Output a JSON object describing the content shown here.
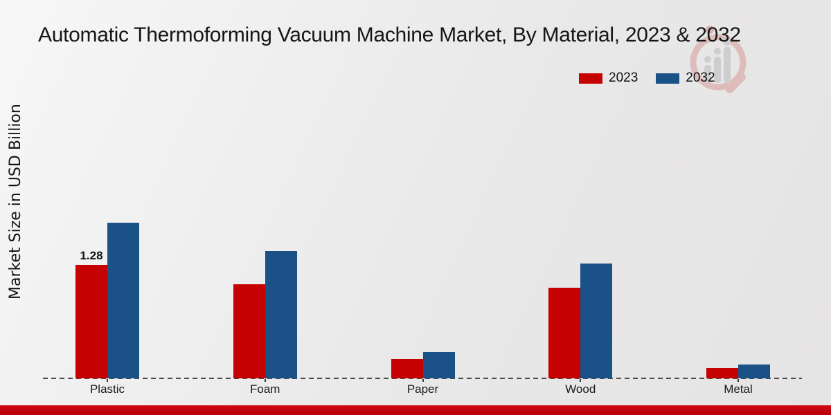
{
  "title": "Automatic Thermoforming Vacuum Machine Market, By Material, 2023 & 2032",
  "ylabel": "Market Size in USD Billion",
  "legend": [
    {
      "label": "2023",
      "color": "#c60102"
    },
    {
      "label": "2032",
      "color": "#1a5187"
    }
  ],
  "chart_data": {
    "type": "bar",
    "title": "Automatic Thermoforming Vacuum Machine Market, By Material, 2023 & 2032",
    "categories": [
      "Plastic",
      "Foam",
      "Paper",
      "Wood",
      "Metal"
    ],
    "series": [
      {
        "name": "2023",
        "color": "#c60102",
        "values": [
          1.28,
          1.06,
          0.22,
          1.02,
          0.12
        ]
      },
      {
        "name": "2032",
        "color": "#1a5187",
        "values": [
          1.76,
          1.44,
          0.3,
          1.3,
          0.16
        ]
      }
    ],
    "xlabel": "",
    "ylabel": "Market Size in USD Billion",
    "ylim": [
      0,
      2
    ],
    "grid": false,
    "baseline_style": "dashed",
    "legend_position": "top-right",
    "annotations": [
      {
        "category": "Plastic",
        "series": "2023",
        "text": "1.28"
      }
    ]
  },
  "watermark": {
    "name": "magnifier-bar-chart-logo",
    "ring_color": "#d49490",
    "bar_color": "#b6b6ba"
  },
  "footer": {
    "brand_strip_color": "#c00511"
  }
}
